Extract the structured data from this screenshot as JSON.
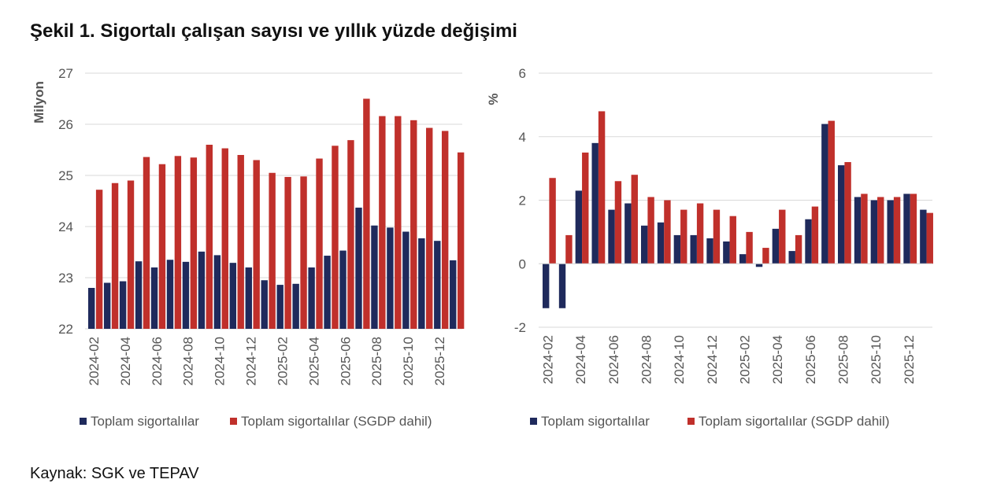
{
  "title": "Şekil 1. Sigortalı çalışan sayısı ve yıllık yüzde değişimi",
  "source": "Kaynak: SGK ve TEPAV",
  "colors": {
    "series1": "#1f2a5c",
    "series2": "#c0302b",
    "grid": "#d9d9d9"
  },
  "chart_data": [
    {
      "type": "bar",
      "ylabel": "Milyon",
      "ylim": [
        22,
        27
      ],
      "yticks": [
        22,
        23,
        24,
        25,
        26,
        27
      ],
      "categories": [
        "2024-02",
        "2024-03",
        "2024-04",
        "2024-05",
        "2024-06",
        "2024-07",
        "2024-08",
        "2024-09",
        "2024-10",
        "2024-11",
        "2024-12",
        "2025-01",
        "2025-02",
        "2025-03",
        "2025-04",
        "2025-05",
        "2025-06",
        "2025-07",
        "2025-08",
        "2025-09",
        "2025-10",
        "2025-11",
        "2025-12",
        "2026-01"
      ],
      "tick_labels": [
        "2024-02",
        "2024-04",
        "2024-06",
        "2024-08",
        "2024-10",
        "2024-12",
        "2025-02",
        "2025-04",
        "2025-06",
        "2025-08",
        "2025-10",
        "2025-12"
      ],
      "series": [
        {
          "name": "Toplam sigortalılar",
          "values": [
            22.8,
            22.9,
            22.93,
            23.32,
            23.2,
            23.35,
            23.31,
            23.51,
            23.44,
            23.29,
            23.2,
            22.95,
            22.86,
            22.88,
            23.2,
            23.43,
            23.53,
            24.37,
            24.02,
            23.98,
            23.9,
            23.77,
            23.72,
            23.34
          ]
        },
        {
          "name": "Toplam sigortalılar (SGDP dahil)",
          "values": [
            24.72,
            24.85,
            24.9,
            25.36,
            25.22,
            25.38,
            25.35,
            25.6,
            25.53,
            25.4,
            25.3,
            25.05,
            24.97,
            24.98,
            25.33,
            25.58,
            25.69,
            26.5,
            26.16,
            26.16,
            26.08,
            25.93,
            25.87,
            25.45
          ]
        }
      ],
      "legend": "bottom"
    },
    {
      "type": "bar",
      "ylabel": "%",
      "ylim": [
        -2,
        6
      ],
      "yticks": [
        -2,
        0,
        2,
        4,
        6
      ],
      "categories": [
        "2024-02",
        "2024-03",
        "2024-04",
        "2024-05",
        "2024-06",
        "2024-07",
        "2024-08",
        "2024-09",
        "2024-10",
        "2024-11",
        "2024-12",
        "2025-01",
        "2025-02",
        "2025-03",
        "2025-04",
        "2025-05",
        "2025-06",
        "2025-07",
        "2025-08",
        "2025-09",
        "2025-10",
        "2025-11",
        "2025-12",
        "2026-01"
      ],
      "tick_labels": [
        "2024-02",
        "2024-04",
        "2024-06",
        "2024-08",
        "2024-10",
        "2024-12",
        "2025-02",
        "2025-04",
        "2025-06",
        "2025-08",
        "2025-10",
        "2025-12"
      ],
      "series": [
        {
          "name": "Toplam sigortalılar",
          "values": [
            -1.4,
            -1.4,
            2.3,
            3.8,
            1.7,
            1.9,
            1.2,
            1.3,
            0.9,
            0.9,
            0.8,
            0.7,
            0.3,
            -0.1,
            1.1,
            0.4,
            1.4,
            4.4,
            3.1,
            2.1,
            2.0,
            2.0,
            2.2,
            1.7
          ]
        },
        {
          "name": "Toplam sigortalılar (SGDP dahil)",
          "values": [
            2.7,
            0.9,
            3.5,
            4.8,
            2.6,
            2.8,
            2.1,
            2.0,
            1.7,
            1.9,
            1.7,
            1.5,
            1.0,
            0.5,
            1.7,
            0.9,
            1.8,
            4.5,
            3.2,
            2.2,
            2.1,
            2.1,
            2.2,
            1.6
          ]
        }
      ],
      "legend": "bottom"
    }
  ]
}
